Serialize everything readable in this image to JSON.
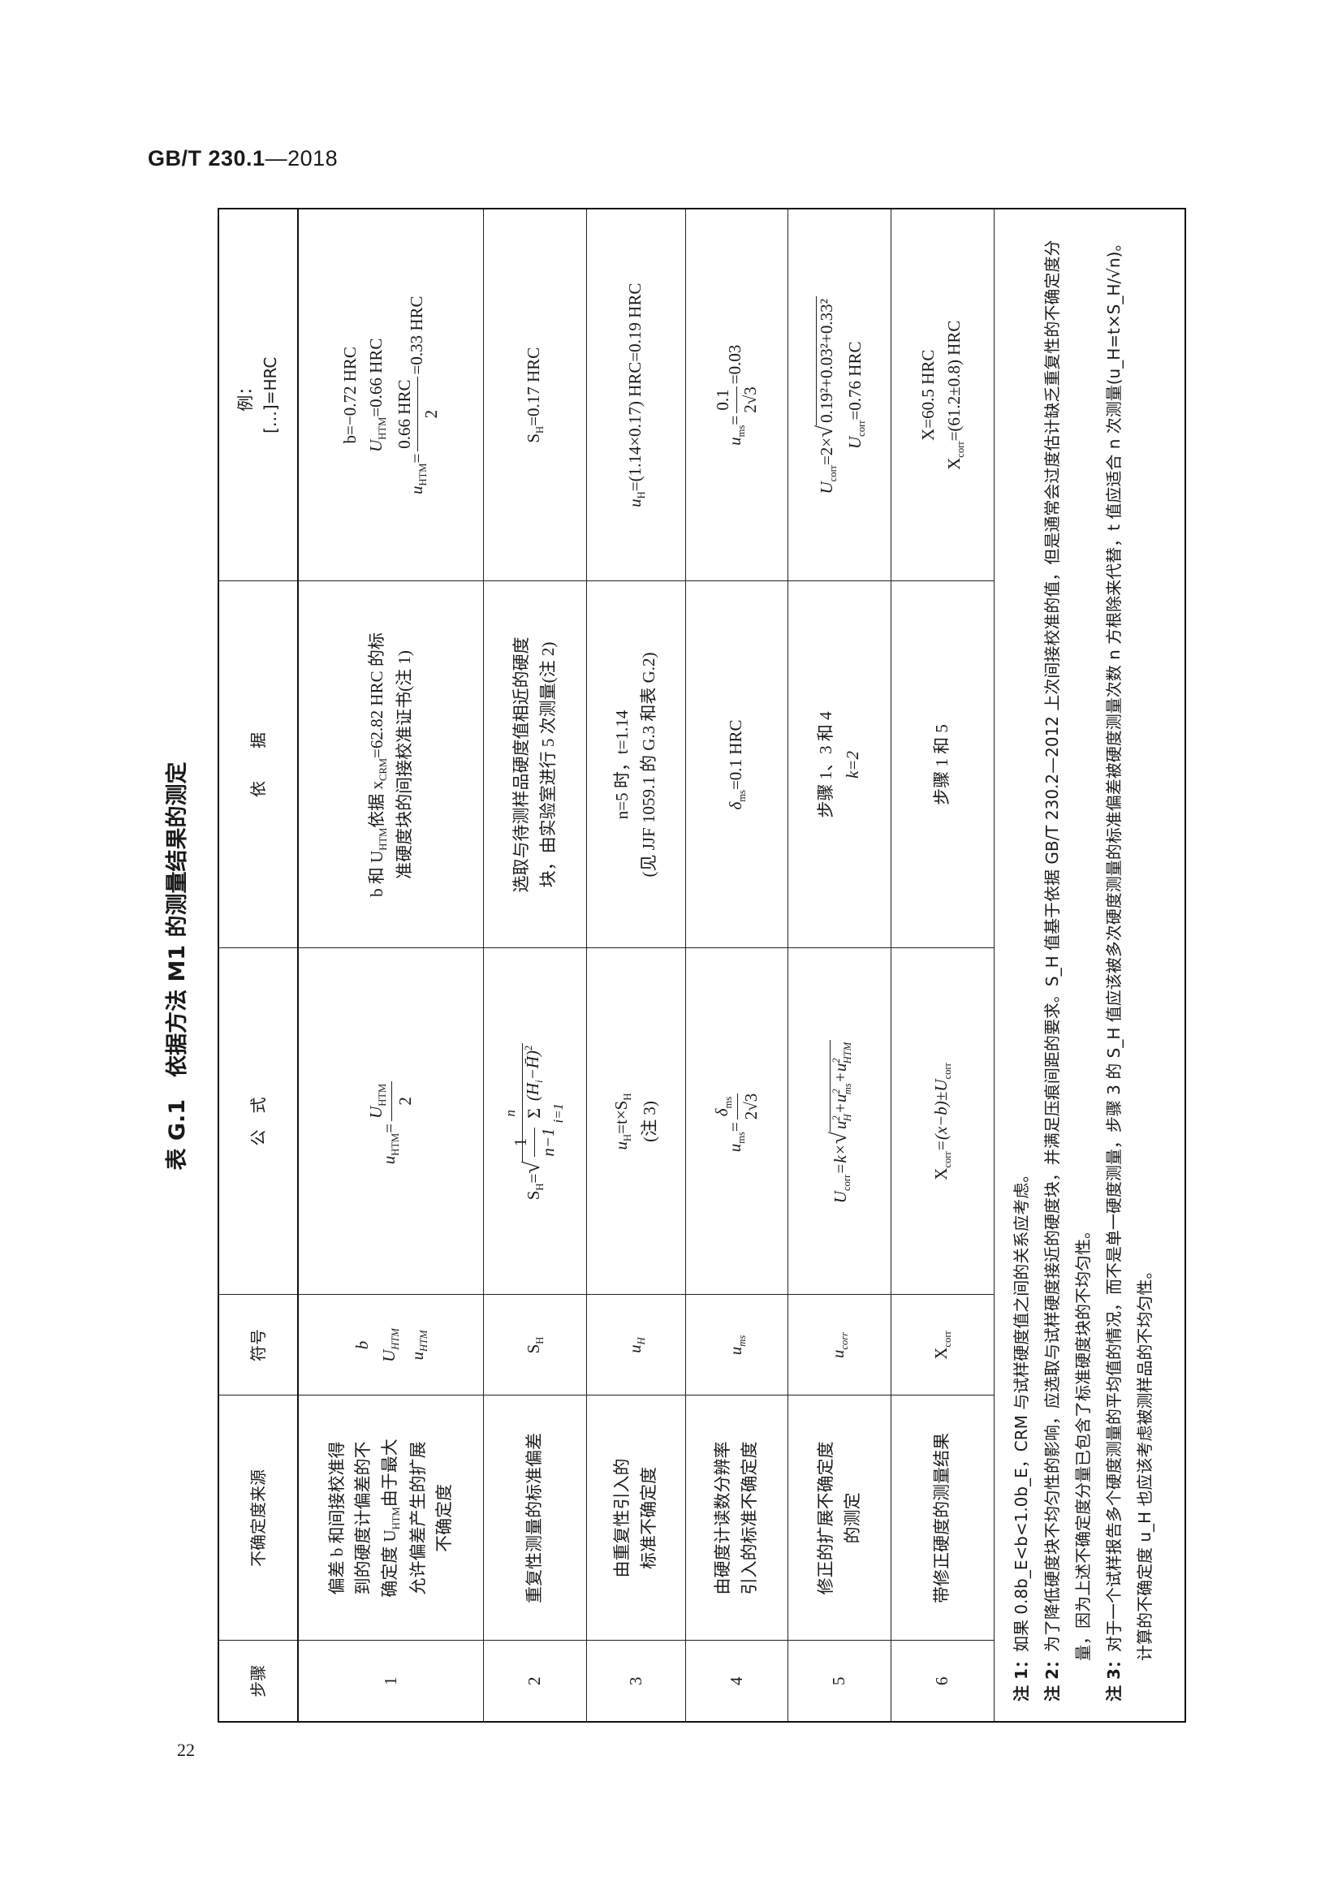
{
  "header": {
    "standard": "GB/T 230.1",
    "year": "—2018"
  },
  "page_number": "22",
  "table": {
    "title": "表 G.1　依据方法 M1 的测量结果的测定",
    "columns": [
      "步骤",
      "不确定度来源",
      "符号",
      "公　式",
      "依　　据",
      "例："
    ],
    "example_unit": "[…]=HRC",
    "rows": [
      {
        "step": "1",
        "source": [
          "偏差 b 和间接校准得",
          "到的硬度计偏差的不",
          "确定度 U",
          "HTM",
          "由于最大",
          "允许偏差产生的扩展",
          "不确定度"
        ],
        "symbols": [
          "b",
          "U",
          "HTM",
          "u",
          "HTM"
        ],
        "formula": {
          "lhs": "u",
          "lhs_sub": "HTM",
          "num": "U",
          "num_sub": "HTM",
          "den": "2"
        },
        "basis": [
          "b 和 U",
          "HTM",
          "依据 x",
          "CRM",
          "=62.82 HRC 的标",
          "准硬度块的间接校准证书(注 1)"
        ],
        "example": [
          "b=−0.72 HRC",
          "U",
          "HTM",
          "=0.66 HRC",
          "u",
          "HTM",
          "0.66 HRC",
          "2",
          "=0.33 HRC"
        ]
      },
      {
        "step": "2",
        "source": [
          "重复性测量的标准偏差"
        ],
        "symbols": [
          "S",
          "H"
        ],
        "formula": {
          "lhs": "S",
          "lhs_sub": "H",
          "num": "1",
          "den": "n−1",
          "sum_top": "n",
          "sum_bot": "i=1",
          "body": "(H",
          "body_sub": "i",
          "body_end": "−H̄)",
          "exp": "2"
        },
        "basis": [
          "选取与待测样品硬度值相近的硬度",
          "块，由实验室进行 5 次测量(注 2)"
        ],
        "example": [
          "S",
          "H",
          "=0.17 HRC"
        ]
      },
      {
        "step": "3",
        "source": [
          "由重复性引入的",
          "标准不确定度"
        ],
        "symbols": [
          "u",
          "H"
        ],
        "formula": {
          "lhs": "u",
          "lhs_sub": "H",
          "rhs": "=t×S",
          "rhs_sub": "H",
          "note": "(注 3)"
        },
        "basis": [
          "n=5 时，t=1.14",
          "(见 JJF 1059.1 的 G.3 和表 G.2)"
        ],
        "example": [
          "u",
          "H",
          "=(1.14×0.17) HRC=0.19 HRC"
        ]
      },
      {
        "step": "4",
        "source": [
          "由硬度计读数分辨率",
          "引入的标准不确定度"
        ],
        "symbols": [
          "u",
          "ms"
        ],
        "formula": {
          "lhs": "u",
          "lhs_sub": "ms",
          "num": "δ",
          "num_sub": "ms",
          "den": "2√3"
        },
        "basis": [
          "δ",
          "ms",
          "=0.1 HRC"
        ],
        "example": [
          "u",
          "ms",
          "0.1",
          "2√3",
          "=0.03"
        ]
      },
      {
        "step": "5",
        "source": [
          "修正的扩展不确定度",
          "的测定"
        ],
        "symbols": [
          "u",
          "corr"
        ],
        "formula": {
          "lhs": "U",
          "lhs_sub": "corr",
          "rhs": "=k×",
          "terms": [
            "u",
            "H",
            "2",
            "+u",
            "ms",
            "2",
            "+u",
            "HTM",
            "2"
          ]
        },
        "basis": [
          "步骤 1、3 和 4",
          "k=2"
        ],
        "example": [
          "U",
          "corr",
          "=2×",
          "0.19²+0.03²+0.33²",
          "U",
          "corr",
          "=0.76 HRC"
        ]
      },
      {
        "step": "6",
        "source": [
          "带修正硬度的测量结果"
        ],
        "symbols": [
          "X",
          "corr"
        ],
        "formula": {
          "lhs": "X",
          "lhs_sub": "corr",
          "rhs": "=(x−b)±U",
          "rhs_sub": "corr"
        },
        "basis": [
          "步骤 1 和 5"
        ],
        "example": [
          "X=60.5 HRC",
          "X",
          "corr",
          "=(61.2±0.8) HRC"
        ]
      }
    ],
    "notes": [
      {
        "label": "注 1：",
        "text": "如果 0.8b_E<b<1.0b_E，CRM 与试样硬度值之间的关系应考虑。"
      },
      {
        "label": "注 2：",
        "text": "为了降低硬度块不均匀性的影响，应选取与试样硬度接近的硬度块，并满足压痕间距的要求。S_H 值基于依据 GB/T 230.2—2012 上次间接校准的值，但是通常会过度估计缺乏重复性的不确定度分量，因为上述不确定度分量已包含了标准硬度块的不均匀性。"
      },
      {
        "label": "注 3：",
        "text": "对于一个试样报告多个硬度测量的平均值的情况，而不是单一硬度测量，步骤 3 的 S_H 值应该被多次硬度测量的标准偏差被硬度测量次数 n 方根除来代替，t 值应适合 n 次测量(u_H=t×S_H/√n)。计算的不确定度 u_H 也应该考虑被测样品的不均匀性。"
      }
    ]
  }
}
